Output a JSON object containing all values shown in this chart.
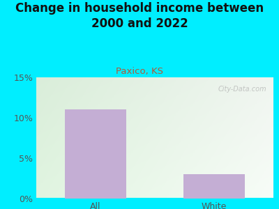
{
  "title": "Change in household income between\n2000 and 2022",
  "subtitle": "Paxico, KS",
  "categories": [
    "All",
    "White"
  ],
  "values": [
    11.0,
    3.0
  ],
  "bar_color": "#c4aed4",
  "title_fontsize": 12,
  "subtitle_fontsize": 9.5,
  "subtitle_color": "#b05a3a",
  "tick_label_color": "#555555",
  "ylim": [
    0,
    15
  ],
  "yticks": [
    0,
    5,
    10,
    15
  ],
  "ytick_labels": [
    "0%",
    "5%",
    "10%",
    "15%"
  ],
  "bg_outer": "#00eeff",
  "watermark": "City-Data.com",
  "bottom_spine_color": "#00eeff"
}
